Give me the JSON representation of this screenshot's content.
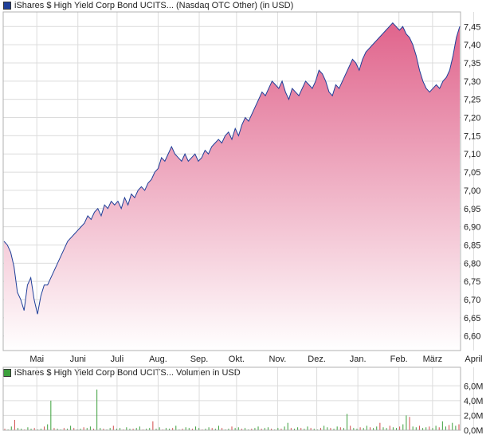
{
  "chart_data": [
    {
      "type": "area",
      "title": "iShares $ High Yield Corp Bond UCITS... (Nasdaq OTC Other) (in USD)",
      "legend_color": "#1f3f99",
      "line_color": "#1f3f99",
      "fill_top_color": "#e0648c",
      "fill_bottom_color": "#ffffff",
      "grid": true,
      "ylim": [
        6.56,
        7.49
      ],
      "y_ticks": [
        "7,45",
        "7,40",
        "7,35",
        "7,30",
        "7,25",
        "7,20",
        "7,15",
        "7,10",
        "7,05",
        "7,00",
        "6,95",
        "6,90",
        "6,85",
        "6,80",
        "6,75",
        "6,70",
        "6,65",
        "6,60"
      ],
      "y_tick_values": [
        7.45,
        7.4,
        7.35,
        7.3,
        7.25,
        7.2,
        7.15,
        7.1,
        7.05,
        7.0,
        6.95,
        6.9,
        6.85,
        6.8,
        6.75,
        6.7,
        6.65,
        6.6
      ],
      "x_ticks": [
        "Mai",
        "Juni",
        "Juli",
        "Aug.",
        "Sep.",
        "Okt.",
        "Nov.",
        "Dez.",
        "Jan.",
        "Feb.",
        "März",
        "April"
      ],
      "x_tick_positions": [
        0.0735,
        0.1633,
        0.249,
        0.3388,
        0.4286,
        0.5102,
        0.6,
        0.6857,
        0.7755,
        0.8653,
        0.9388,
        1.0286
      ],
      "series": [
        {
          "values": [
            6.86,
            6.85,
            6.83,
            6.79,
            6.72,
            6.7,
            6.67,
            6.74,
            6.76,
            6.7,
            6.66,
            6.71,
            6.74,
            6.74,
            6.76,
            6.78,
            6.8,
            6.82,
            6.84,
            6.86,
            6.87,
            6.88,
            6.89,
            6.9,
            6.91,
            6.93,
            6.92,
            6.94,
            6.95,
            6.93,
            6.96,
            6.95,
            6.97,
            6.96,
            6.97,
            6.95,
            6.98,
            6.96,
            6.99,
            6.98,
            7.0,
            7.01,
            7.0,
            7.02,
            7.03,
            7.05,
            7.06,
            7.09,
            7.08,
            7.1,
            7.12,
            7.1,
            7.09,
            7.08,
            7.1,
            7.08,
            7.09,
            7.1,
            7.08,
            7.09,
            7.11,
            7.1,
            7.12,
            7.13,
            7.14,
            7.13,
            7.15,
            7.16,
            7.14,
            7.17,
            7.15,
            7.18,
            7.2,
            7.19,
            7.21,
            7.23,
            7.25,
            7.27,
            7.26,
            7.28,
            7.3,
            7.29,
            7.28,
            7.3,
            7.27,
            7.25,
            7.28,
            7.27,
            7.26,
            7.28,
            7.3,
            7.29,
            7.28,
            7.3,
            7.33,
            7.32,
            7.3,
            7.27,
            7.26,
            7.29,
            7.28,
            7.3,
            7.32,
            7.34,
            7.36,
            7.35,
            7.33,
            7.36,
            7.38,
            7.39,
            7.4,
            7.41,
            7.42,
            7.43,
            7.44,
            7.45,
            7.46,
            7.45,
            7.44,
            7.45,
            7.43,
            7.42,
            7.4,
            7.37,
            7.33,
            7.3,
            7.28,
            7.27,
            7.28,
            7.29,
            7.28,
            7.3,
            7.31,
            7.33,
            7.37,
            7.42,
            7.45
          ]
        }
      ]
    },
    {
      "type": "bar",
      "title": "iShares $ High Yield Corp Bond UCITS... Volumen in USD",
      "legend_color": "#3ca03c",
      "up_color": "#3ca03c",
      "down_color": "#d04a4a",
      "grid": true,
      "ylim": [
        0,
        7.0
      ],
      "y_ticks": [
        "6,0M",
        "4,0M",
        "2,0M",
        "0,0M"
      ],
      "y_tick_values": [
        6.0,
        4.0,
        2.0,
        0.0
      ],
      "series": [
        {
          "values": [
            0.2,
            0.1,
            0.5,
            1.4,
            0.3,
            0.2,
            0.1,
            0.4,
            0.2,
            0.3,
            0.1,
            0.2,
            0.5,
            0.8,
            4.0,
            0.3,
            0.2,
            0.1,
            0.3,
            0.2,
            0.6,
            0.3,
            0.1,
            0.2,
            0.4,
            0.3,
            0.5,
            0.2,
            5.5,
            0.3,
            0.2,
            0.1,
            0.3,
            0.6,
            0.2,
            0.3,
            0.1,
            0.4,
            0.2,
            0.2,
            0.3,
            0.5,
            0.1,
            0.2,
            0.3,
            1.2,
            0.2,
            0.4,
            0.1,
            0.3,
            0.2,
            0.3,
            0.6,
            0.1,
            0.2,
            0.4,
            0.3,
            0.2,
            0.5,
            0.3,
            0.1,
            0.2,
            0.4,
            0.3,
            0.2,
            0.6,
            0.3,
            0.1,
            0.2,
            0.5,
            0.3,
            0.4,
            0.2,
            0.3,
            0.1,
            0.2,
            0.3,
            0.5,
            0.2,
            0.3,
            0.4,
            0.2,
            0.1,
            0.3,
            0.2,
            0.5,
            1.0,
            0.3,
            0.2,
            0.4,
            0.3,
            0.2,
            0.5,
            0.3,
            0.2,
            0.1,
            0.3,
            0.6,
            0.4,
            0.3,
            0.2,
            0.5,
            0.4,
            0.3,
            2.2,
            0.6,
            0.3,
            0.2,
            0.4,
            0.3,
            0.6,
            0.4,
            0.3,
            0.5,
            1.0,
            0.4,
            0.3,
            0.6,
            0.4,
            0.3,
            0.5,
            0.8,
            2.0,
            1.8,
            0.5,
            0.4,
            0.6,
            0.3,
            0.4,
            0.5,
            0.3,
            0.6,
            0.4,
            1.2,
            0.5,
            0.7,
            1.0,
            0.6,
            0.8
          ]
        }
      ]
    }
  ]
}
